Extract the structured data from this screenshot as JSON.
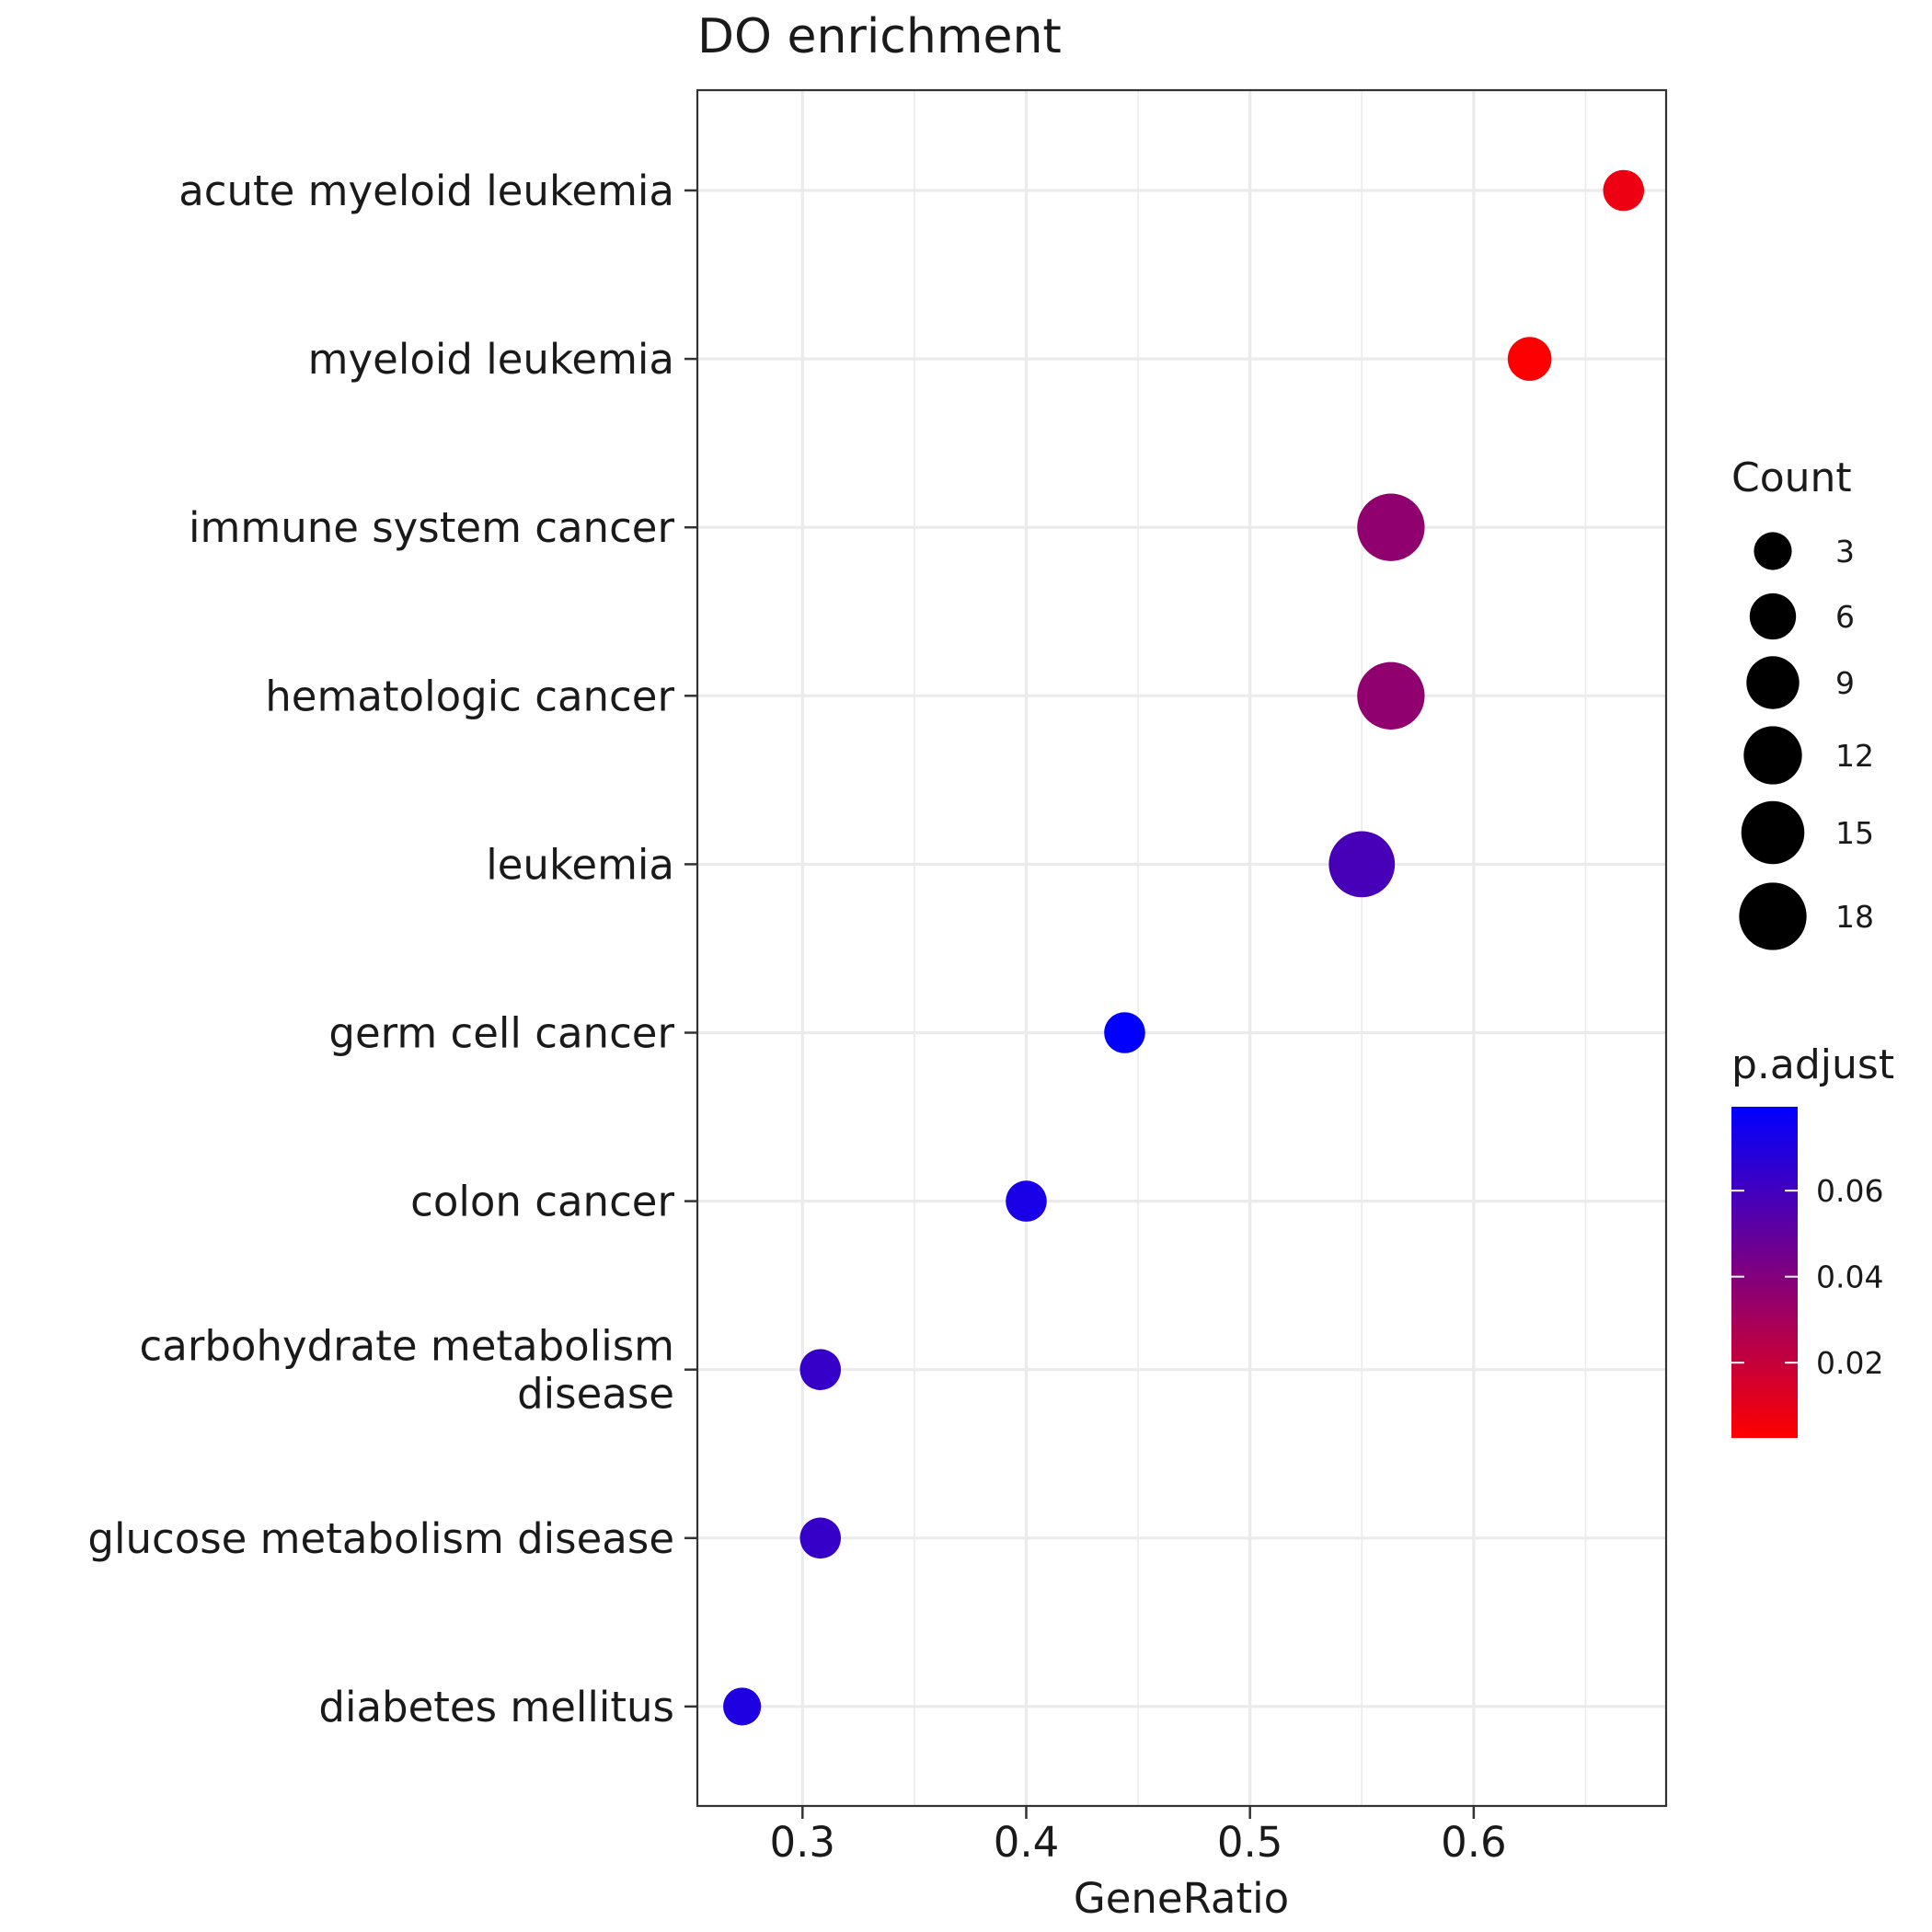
{
  "chart_data": {
    "type": "scatter",
    "title": "DO enrichment",
    "xlabel": "GeneRatio",
    "ylabel": "",
    "xlim": [
      0.253,
      0.686
    ],
    "xticks": [
      0.3,
      0.4,
      0.5,
      0.6
    ],
    "xtick_labels": [
      "0.3",
      "0.4",
      "0.5",
      "0.6"
    ],
    "grid": true,
    "categories": [
      "acute myeloid leukemia",
      "myeloid leukemia",
      "immune system cancer",
      "hematologic cancer",
      "leukemia",
      "germ cell cancer",
      "colon cancer",
      "carbohydrate metabolism disease",
      "glucose metabolism disease",
      "diabetes mellitus"
    ],
    "category_lines": [
      [
        "acute myeloid leukemia"
      ],
      [
        "myeloid leukemia"
      ],
      [
        "immune system cancer"
      ],
      [
        "hematologic cancer"
      ],
      [
        "leukemia"
      ],
      [
        "germ cell cancer"
      ],
      [
        "colon cancer"
      ],
      [
        "carbohydrate metabolism",
        "disease"
      ],
      [
        "glucose metabolism disease"
      ],
      [
        "diabetes mellitus"
      ]
    ],
    "points": [
      {
        "category": "acute myeloid leukemia",
        "gene_ratio": 0.667,
        "count": 4,
        "p_adjust": 0.008
      },
      {
        "category": "myeloid leukemia",
        "gene_ratio": 0.625,
        "count": 5,
        "p_adjust": 0.003
      },
      {
        "category": "immune system cancer",
        "gene_ratio": 0.563,
        "count": 18,
        "p_adjust": 0.036
      },
      {
        "category": "hematologic cancer",
        "gene_ratio": 0.563,
        "count": 18,
        "p_adjust": 0.036
      },
      {
        "category": "leukemia",
        "gene_ratio": 0.55,
        "count": 17,
        "p_adjust": 0.058
      },
      {
        "category": "germ cell cancer",
        "gene_ratio": 0.444,
        "count": 4,
        "p_adjust": 0.079
      },
      {
        "category": "colon cancer",
        "gene_ratio": 0.4,
        "count": 4,
        "p_adjust": 0.072
      },
      {
        "category": "carbohydrate metabolism disease",
        "gene_ratio": 0.308,
        "count": 4,
        "p_adjust": 0.063
      },
      {
        "category": "glucose metabolism disease",
        "gene_ratio": 0.308,
        "count": 4,
        "p_adjust": 0.063
      },
      {
        "category": "diabetes mellitus",
        "gene_ratio": 0.273,
        "count": 3,
        "p_adjust": 0.07
      }
    ],
    "size_legend": {
      "title": "Count",
      "values": [
        3,
        6,
        9,
        12,
        15,
        18
      ],
      "labels": [
        "3",
        "6",
        "9",
        "12",
        "15",
        "18"
      ]
    },
    "color_legend": {
      "title": "p.adjust",
      "range": [
        0.0025,
        0.0795
      ],
      "ticks": [
        0.06,
        0.04,
        0.02
      ],
      "tick_labels": [
        "0.06",
        "0.04",
        "0.02"
      ],
      "low_color": "#ff0000",
      "high_color": "#0000ff"
    },
    "colors": {
      "grid": "#ebebeb",
      "panel_border": "#333333",
      "text": "#1a1a1a"
    }
  }
}
